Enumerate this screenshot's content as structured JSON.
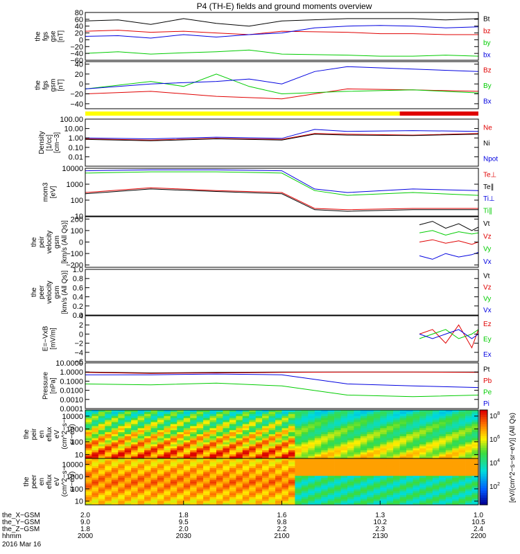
{
  "title": "P4 (TH-E) fields and ground moments overview",
  "colors": {
    "black": "#000000",
    "red": "#e00000",
    "green": "#00cc00",
    "blue": "#0000e0",
    "yellow": "#ffff00"
  },
  "chart_data": [
    {
      "type": "line",
      "ylabel": [
        "the",
        "fgs",
        "gse",
        "[nT]"
      ],
      "ylim": [
        -60,
        80
      ],
      "yticks": [
        {
          "v": 80,
          "label": "80"
        },
        {
          "v": 60,
          "label": "60"
        },
        {
          "v": 40,
          "label": "40"
        },
        {
          "v": 20,
          "label": "20"
        },
        {
          "v": 0,
          "label": "0"
        },
        {
          "v": -20,
          "label": "−20"
        },
        {
          "v": -40,
          "label": "−40"
        },
        {
          "v": -60,
          "label": "−60"
        }
      ],
      "series": [
        {
          "name": "Bt",
          "color": "#000000",
          "x": [
            0,
            10,
            20,
            30,
            40,
            50,
            60,
            80,
            90,
            100,
            110,
            120
          ],
          "y": [
            55,
            58,
            45,
            62,
            48,
            40,
            55,
            62,
            62,
            62,
            58,
            62
          ]
        },
        {
          "name": "bz",
          "color": "#e00000",
          "x": [
            0,
            10,
            20,
            30,
            40,
            50,
            60,
            80,
            90,
            100,
            110,
            120
          ],
          "y": [
            25,
            28,
            22,
            25,
            20,
            15,
            25,
            22,
            18,
            18,
            15,
            15
          ]
        },
        {
          "name": "by",
          "color": "#00cc00",
          "x": [
            0,
            10,
            20,
            30,
            40,
            50,
            60,
            80,
            90,
            100,
            110,
            120
          ],
          "y": [
            -40,
            -35,
            -42,
            -38,
            -35,
            -30,
            -42,
            -45,
            -48,
            -48,
            -45,
            -48
          ]
        },
        {
          "name": "bx",
          "color": "#0000e0",
          "x": [
            0,
            10,
            20,
            30,
            40,
            50,
            60,
            70,
            80,
            90,
            100,
            110,
            120
          ],
          "y": [
            10,
            12,
            5,
            15,
            8,
            15,
            20,
            35,
            40,
            42,
            40,
            35,
            38
          ]
        }
      ]
    },
    {
      "type": "line",
      "ylabel": [
        "the",
        "fgs",
        "gsm",
        "[nT]"
      ],
      "ylim": [
        -50,
        45
      ],
      "yticks": [
        {
          "v": 40,
          "label": "40"
        },
        {
          "v": 20,
          "label": "20"
        },
        {
          "v": 0,
          "label": "0"
        },
        {
          "v": -20,
          "label": "−20"
        },
        {
          "v": -40,
          "label": "−40"
        }
      ],
      "series": [
        {
          "name": "Bz",
          "color": "#e00000",
          "x": [
            0,
            20,
            40,
            60,
            70,
            80,
            100,
            120
          ],
          "y": [
            -20,
            -15,
            -25,
            -30,
            -20,
            -10,
            -12,
            -15
          ]
        },
        {
          "name": "By",
          "color": "#00cc00",
          "x": [
            0,
            20,
            30,
            40,
            50,
            60,
            80,
            100,
            120
          ],
          "y": [
            -10,
            5,
            -5,
            20,
            -5,
            -20,
            -15,
            -12,
            -18
          ]
        },
        {
          "name": "Bx",
          "color": "#0000e0",
          "x": [
            0,
            20,
            40,
            50,
            60,
            70,
            80,
            100,
            120
          ],
          "y": [
            -10,
            0,
            5,
            10,
            0,
            25,
            35,
            30,
            25
          ]
        }
      ]
    },
    {
      "type": "line",
      "ylabel": [
        "Density",
        "[1/cc]",
        "[cm−3]"
      ],
      "log": true,
      "ylim": [
        0.001,
        100
      ],
      "yticks": [
        {
          "v": 100,
          "label": "100.00"
        },
        {
          "v": 10,
          "label": "10.00"
        },
        {
          "v": 1,
          "label": "1.00"
        },
        {
          "v": 0.1,
          "label": "0.10"
        },
        {
          "v": 0.01,
          "label": "0.01"
        }
      ],
      "series": [
        {
          "name": "Ne",
          "color": "#e00000",
          "x": [
            0,
            20,
            40,
            60,
            70,
            80,
            100,
            120
          ],
          "y": [
            0.8,
            0.6,
            0.9,
            0.7,
            3,
            2.5,
            2,
            3
          ]
        },
        {
          "name": "Ni",
          "color": "#000000",
          "x": [
            0,
            20,
            40,
            60,
            70,
            80,
            100,
            120
          ],
          "y": [
            0.7,
            0.5,
            0.8,
            0.6,
            2.5,
            2,
            1.8,
            2.5
          ]
        },
        {
          "name": "Npot",
          "color": "#0000e0",
          "x": [
            0,
            20,
            40,
            60,
            70,
            80,
            100,
            120
          ],
          "y": [
            1,
            0.8,
            1.2,
            0.9,
            8,
            5,
            6,
            5
          ]
        }
      ]
    },
    {
      "type": "line",
      "ylabel": [
        "mom3",
        "[eV]"
      ],
      "log": true,
      "ylim": [
        10,
        10000
      ],
      "yticks": [
        {
          "v": 10000,
          "label": "10000"
        },
        {
          "v": 1000,
          "label": "1000"
        },
        {
          "v": 100,
          "label": "100"
        },
        {
          "v": 10,
          "label": "10"
        }
      ],
      "series": [
        {
          "name": "Te⊥",
          "color": "#e00000",
          "x": [
            0,
            20,
            40,
            60,
            70,
            80,
            100,
            120
          ],
          "y": [
            300,
            600,
            400,
            300,
            30,
            25,
            30,
            30
          ]
        },
        {
          "name": "Te∥",
          "color": "#000000",
          "x": [
            0,
            20,
            40,
            60,
            70,
            80,
            100,
            120
          ],
          "y": [
            250,
            500,
            350,
            250,
            25,
            20,
            25,
            25
          ]
        },
        {
          "name": "Ti⊥",
          "color": "#0000e0",
          "x": [
            0,
            20,
            40,
            60,
            70,
            80,
            100,
            120
          ],
          "y": [
            7000,
            8000,
            8000,
            7000,
            500,
            300,
            500,
            400
          ]
        },
        {
          "name": "Ti∥",
          "color": "#00cc00",
          "x": [
            0,
            20,
            40,
            60,
            70,
            80,
            100,
            120
          ],
          "y": [
            5000,
            6000,
            6000,
            5000,
            400,
            200,
            300,
            200
          ]
        }
      ]
    },
    {
      "type": "line",
      "ylabel": [
        "the",
        "peir",
        "velocity",
        "gsm",
        "[km/s (All Qs)]"
      ],
      "ylim": [
        -220,
        220
      ],
      "yticks": [
        {
          "v": 200,
          "label": "200"
        },
        {
          "v": 100,
          "label": "100"
        },
        {
          "v": 0,
          "label": "0"
        },
        {
          "v": -100,
          "label": "−100"
        },
        {
          "v": -200,
          "label": "−200"
        }
      ],
      "series": [
        {
          "name": "Vt",
          "color": "#000000",
          "x": [
            102,
            106,
            110,
            114,
            118,
            120
          ],
          "y": [
            150,
            180,
            120,
            160,
            100,
            130
          ]
        },
        {
          "name": "Vz",
          "color": "#e00000",
          "x": [
            102,
            106,
            110,
            114,
            118,
            120
          ],
          "y": [
            0,
            20,
            -10,
            10,
            -20,
            0
          ]
        },
        {
          "name": "Vy",
          "color": "#00cc00",
          "x": [
            102,
            106,
            110,
            114,
            118,
            120
          ],
          "y": [
            80,
            100,
            60,
            90,
            70,
            80
          ]
        },
        {
          "name": "Vx",
          "color": "#0000e0",
          "x": [
            102,
            106,
            110,
            114,
            118,
            120
          ],
          "y": [
            -120,
            -150,
            -100,
            -130,
            -110,
            -90
          ]
        }
      ]
    },
    {
      "type": "line",
      "ylabel": [
        "the",
        "peer",
        "velocity",
        "gsm",
        "[km/s (All Qs)]"
      ],
      "ylim": [
        0,
        1
      ],
      "yticks": [
        {
          "v": 1.0,
          "label": "1.0"
        },
        {
          "v": 0.8,
          "label": "0.8"
        },
        {
          "v": 0.6,
          "label": "0.6"
        },
        {
          "v": 0.4,
          "label": "0.4"
        },
        {
          "v": 0.2,
          "label": "0.2"
        },
        {
          "v": 0.0,
          "label": "0.0"
        }
      ],
      "series": [
        {
          "name": "Vt",
          "color": "#000000",
          "x": [],
          "y": []
        },
        {
          "name": "Vz",
          "color": "#e00000",
          "x": [],
          "y": []
        },
        {
          "name": "Vy",
          "color": "#00cc00",
          "x": [],
          "y": []
        },
        {
          "name": "Vx",
          "color": "#0000e0",
          "x": [],
          "y": []
        }
      ]
    },
    {
      "type": "line",
      "ylabel": [
        "E=−VxB",
        "[mV/m]"
      ],
      "ylim": [
        -6,
        4
      ],
      "yticks": [
        {
          "v": 4,
          "label": "4"
        },
        {
          "v": 2,
          "label": "2"
        },
        {
          "v": 0,
          "label": "0"
        },
        {
          "v": -2,
          "label": "−2"
        },
        {
          "v": -4,
          "label": "−4"
        },
        {
          "v": -6,
          "label": "−6"
        }
      ],
      "series": [
        {
          "name": "Ez",
          "color": "#e00000",
          "x": [
            102,
            106,
            110,
            114,
            118,
            120
          ],
          "y": [
            0,
            1,
            -2,
            2,
            -3,
            1
          ]
        },
        {
          "name": "Ey",
          "color": "#00cc00",
          "x": [
            102,
            106,
            110,
            114,
            118,
            120
          ],
          "y": [
            -1,
            0,
            1,
            -1,
            0,
            1
          ]
        },
        {
          "name": "Ex",
          "color": "#0000e0",
          "x": [
            102,
            106,
            110,
            114,
            118,
            120
          ],
          "y": [
            0,
            -1,
            0,
            1,
            -1,
            0
          ]
        }
      ]
    },
    {
      "type": "line",
      "ylabel": [
        "Pressure",
        "[nPa]"
      ],
      "log": true,
      "ylim": [
        0.0001,
        10
      ],
      "yticks": [
        {
          "v": 10,
          "label": "10.0000"
        },
        {
          "v": 1,
          "label": "1.0000"
        },
        {
          "v": 0.1,
          "label": "0.1000"
        },
        {
          "v": 0.01,
          "label": "0.0100"
        },
        {
          "v": 0.001,
          "label": "0.0010"
        },
        {
          "v": 0.0001,
          "label": "0.0001"
        }
      ],
      "series": [
        {
          "name": "Pt",
          "color": "#000000",
          "x": [
            0,
            20,
            40,
            60,
            80,
            100,
            120
          ],
          "y": [
            1,
            0.8,
            0.9,
            1,
            1,
            1,
            1
          ]
        },
        {
          "name": "Pb",
          "color": "#e00000",
          "x": [
            0,
            20,
            40,
            60,
            80,
            100,
            120
          ],
          "y": [
            0.9,
            0.7,
            0.8,
            0.9,
            1,
            1,
            0.9
          ]
        },
        {
          "name": "Pe",
          "color": "#00cc00",
          "x": [
            0,
            20,
            40,
            60,
            80,
            100,
            120
          ],
          "y": [
            0.05,
            0.04,
            0.06,
            0.03,
            0.003,
            0.002,
            0.003
          ]
        },
        {
          "name": "Pi",
          "color": "#0000e0",
          "x": [
            0,
            20,
            40,
            60,
            80,
            100,
            120
          ],
          "y": [
            0.5,
            0.5,
            0.6,
            0.5,
            0.05,
            0.03,
            0.02
          ]
        }
      ]
    },
    {
      "type": "heatmap",
      "ylabel": [
        "the",
        "peir",
        "en",
        "eflux",
        "eV",
        "(cm^2−s−",
        "sr−eV)"
      ],
      "log": true,
      "ylim": [
        5,
        30000
      ],
      "yticks": [
        {
          "v": 10000,
          "label": "10000"
        },
        {
          "v": 1000,
          "label": "1000"
        },
        {
          "v": 100,
          "label": "100"
        },
        {
          "v": 10,
          "label": "10"
        }
      ]
    },
    {
      "type": "heatmap",
      "ylabel": [
        "the",
        "peer",
        "en",
        "eflux",
        "eV",
        "(cm^2−s−",
        "sr−eV)"
      ],
      "log": true,
      "ylim": [
        5,
        30000
      ],
      "yticks": [
        {
          "v": 10000,
          "label": "10000"
        },
        {
          "v": 1000,
          "label": "1000"
        },
        {
          "v": 100,
          "label": "100"
        },
        {
          "v": 10,
          "label": "10"
        }
      ]
    }
  ],
  "colorbar": {
    "label": "[eV/(cm^2−s−sr−eV)] (All Qs)",
    "ticks": [
      {
        "label": "10",
        "exp": "8"
      },
      {
        "label": "10",
        "exp": "6"
      },
      {
        "label": "10",
        "exp": "4"
      },
      {
        "label": "10",
        "exp": "2"
      }
    ]
  },
  "xaxis": {
    "range": [
      0,
      120
    ],
    "row_labels": [
      "the_X−GSM",
      "the_Y−GSM",
      "the_Z−GSM",
      "hhmm",
      "2016 Mar 16"
    ],
    "ticks": [
      {
        "x": 0,
        "X": "2.0",
        "Y": "9.0",
        "Z": "1.8",
        "hhmm": "2000"
      },
      {
        "x": 30,
        "X": "1.8",
        "Y": "9.5",
        "Z": "2.0",
        "hhmm": "2030"
      },
      {
        "x": 60,
        "X": "1.6",
        "Y": "9.8",
        "Z": "2.2",
        "hhmm": "2100"
      },
      {
        "x": 90,
        "X": "1.3",
        "Y": "10.2",
        "Z": "2.3",
        "hhmm": "2130"
      },
      {
        "x": 120,
        "X": "1.0",
        "Y": "10.5",
        "Z": "2.4",
        "hhmm": "2200"
      }
    ]
  },
  "mode_bar": [
    {
      "from": 0,
      "to": 96,
      "color": "#ffff00"
    },
    {
      "from": 96,
      "to": 120,
      "color": "#e00000"
    }
  ]
}
